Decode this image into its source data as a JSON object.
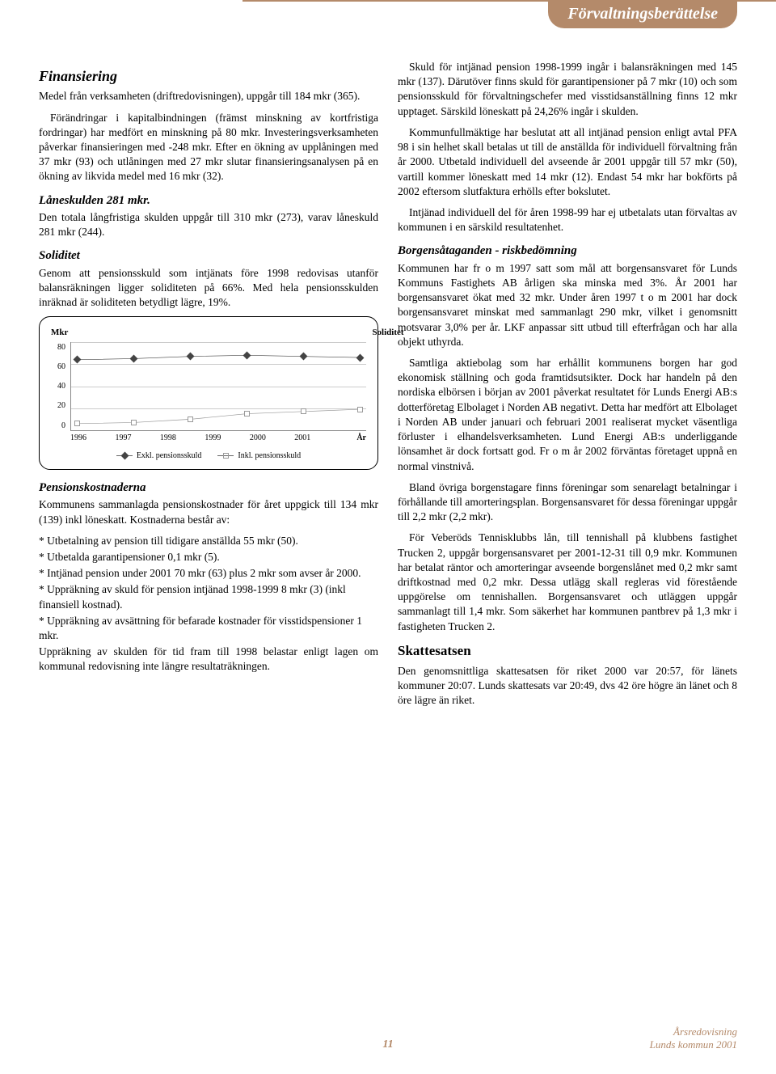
{
  "header": {
    "title": "Förvaltningsberättelse"
  },
  "left": {
    "h_fin": "Finansiering",
    "p1": "Medel från verksamheten (driftredovisningen), uppgår till 184 mkr (365).",
    "p2": "Förändringar i kapitalbindningen (främst minskning av kortfristiga fordringar) har medfört en minskning på 80 mkr. Investeringsverksamheten påverkar finansieringen med -248 mkr. Efter en ökning av upplåningen med 37 mkr (93) och utlåningen med 27 mkr slutar finansieringsanalysen på en ökning av likvida medel med 16 mkr (32).",
    "h_lane": "Låneskulden 281 mkr.",
    "p3": "Den totala långfristiga skulden uppgår till 310 mkr (273), varav låneskuld 281 mkr (244).",
    "h_sol": "Soliditet",
    "p4": "Genom att pensionsskuld som intjänats före 1998 redovisas utanför balansräkningen ligger soliditeten på 66%. Med hela pensionsskulden inräknad är soliditeten betydligt lägre, 19%.",
    "h_pens": "Pensionskostnaderna",
    "p5": "Kommunens sammanlagda pensionskostnader för året uppgick till 134 mkr (139) inkl löneskatt. Kostnaderna består av:",
    "b1": "* Utbetalning av pension till tidigare anställda 55 mkr (50).",
    "b2": "* Utbetalda garantipensioner 0,1 mkr (5).",
    "b3": "* Intjänad pension under 2001 70 mkr (63) plus 2 mkr som avser år 2000.",
    "b4": "* Uppräkning av skuld för pension intjänad 1998-1999 8 mkr (3) (inkl finansiell kostnad).",
    "b5": "* Uppräkning av avsättning för befarade kostnader för visstidspensioner 1 mkr.",
    "p6": "Uppräkning av skulden för tid fram till 1998 belastar enligt lagen om kommunal redovisning inte längre resultaträkningen."
  },
  "right": {
    "p1": "Skuld för intjänad pension 1998-1999 ingår i balansräkningen med 145 mkr (137). Därutöver finns skuld för garantipensioner på 7 mkr (10) och som pensionsskuld för förvaltningschefer med visstidsanställning finns 12 mkr upptaget. Särskild löneskatt på 24,26% ingår i skulden.",
    "p2": "Kommunfullmäktige har beslutat att all intjänad pension enligt avtal PFA 98 i sin helhet skall betalas ut till de anställda för individuell förvaltning från år 2000. Utbetald individuell del avseende år 2001 uppgår till 57 mkr (50), vartill kommer löneskatt med 14 mkr (12). Endast 54 mkr har bokförts på 2002 eftersom slutfaktura erhölls efter bokslutet.",
    "p3": "Intjänad individuell del för åren 1998-99 har ej utbetalats utan förvaltas av kommunen i en särskild resultatenhet.",
    "h_borg": "Borgensåtaganden - riskbedömning",
    "p4": "Kommunen har fr o m 1997 satt som mål att borgensansvaret för Lunds Kommuns Fastighets AB årligen ska minska med 3%. År 2001 har borgensansvaret ökat med 32 mkr. Under åren 1997 t o m 2001 har dock borgensansvaret minskat med sammanlagt 290 mkr, vilket i genomsnitt motsvarar 3,0% per år. LKF anpassar sitt utbud till efterfrågan och har alla objekt uthyrda.",
    "p5": "Samtliga aktiebolag som har erhållit kommunens borgen har god ekonomisk ställning och goda framtidsutsikter. Dock har handeln på den nordiska elbörsen i början av 2001 påverkat resultatet för Lunds Energi AB:s dotterföretag Elbolaget i Norden AB negativt. Detta har medfört att Elbolaget i Norden AB under januari och februari 2001 realiserat mycket väsentliga förluster i elhandelsverksamheten. Lund Energi AB:s underliggande lönsamhet är dock fortsatt god. Fr o m år 2002 förväntas företaget uppnå en normal vinstnivå.",
    "p6": "Bland övriga borgenstagare finns föreningar som senarelagt betalningar i förhållande till amorteringsplan. Borgensansvaret för dessa föreningar uppgår till 2,2 mkr (2,2 mkr).",
    "p7": "För Veberöds Tennisklubbs lån, till tennishall på klubbens fastighet Trucken 2, uppgår borgensansvaret per 2001-12-31 till 0,9 mkr. Kommunen har betalat räntor och amorteringar avseende borgenslånet med 0,2 mkr samt driftkostnad med 0,2 mkr. Dessa utlägg skall regleras vid förestående uppgörelse om tennishallen. Borgensansvaret och utläggen uppgår sammanlagt till 1,4 mkr. Som säkerhet har kommunen pantbrev på 1,3 mkr i fastigheten Trucken 2.",
    "h_skatt": "Skattesatsen",
    "p8": "Den genomsnittliga skattesatsen för riket 2000 var 20:57, för länets kommuner 20:07. Lunds skattesats var 20:49, dvs 42 öre högre än länet och 8 öre lägre än riket."
  },
  "chart": {
    "type": "line",
    "title": "Soliditet",
    "y_label": "Mkr",
    "x_label": "År",
    "ylim": [
      0,
      80
    ],
    "ytick_step": 20,
    "yticks": [
      "80",
      "60",
      "40",
      "20",
      "0"
    ],
    "xticks": [
      "1996",
      "1997",
      "1998",
      "1999",
      "2000",
      "2001"
    ],
    "grid_color": "#cccccc",
    "background_color": "#ffffff",
    "series": [
      {
        "name": "Exkl. pensionsskuld",
        "marker": "diamond",
        "color": "#444444",
        "values": [
          64,
          65,
          67,
          68,
          67,
          66
        ]
      },
      {
        "name": "Inkl. pensionsskuld",
        "marker": "square",
        "color": "#999999",
        "values": [
          6,
          7,
          10,
          15,
          17,
          19
        ]
      }
    ]
  },
  "footer": {
    "l1": "Årsredovisning",
    "l2": "Lunds kommun 2001",
    "page": "11"
  }
}
